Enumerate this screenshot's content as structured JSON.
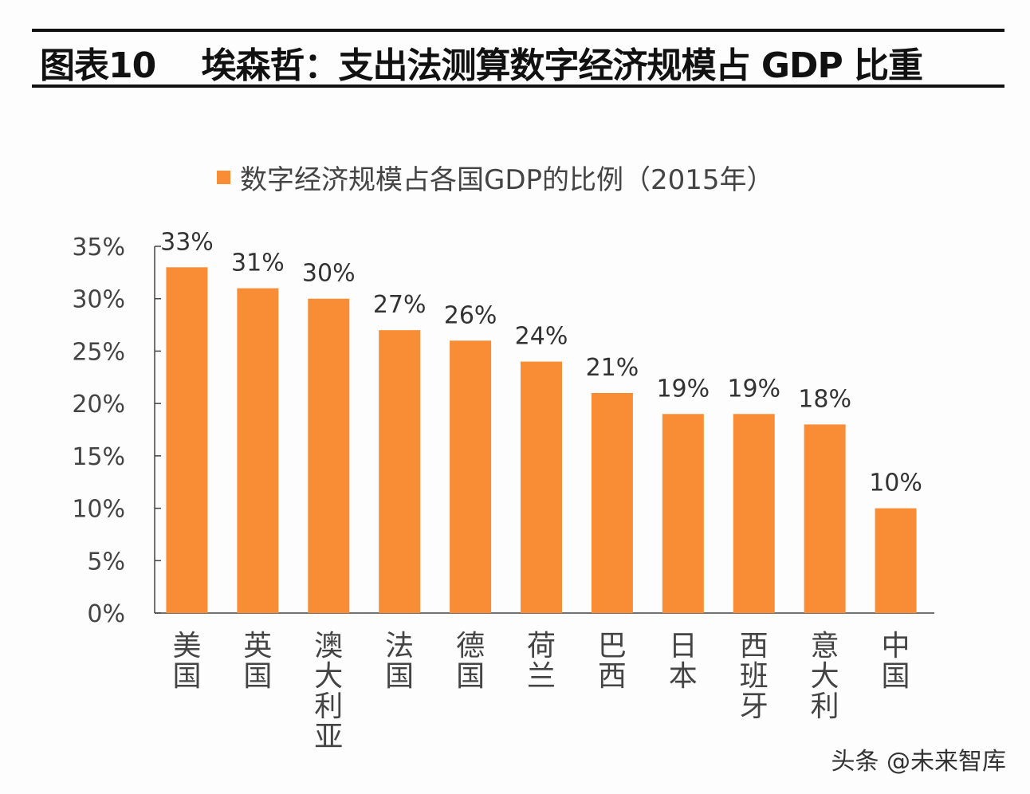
{
  "title": "图表10    埃森哲：支出法测算数字经济规模占 GDP 比重",
  "watermark": "头条 @未来智库",
  "colors": {
    "bar": "#F98D36",
    "axis": "#444444"
  },
  "chart_data": {
    "type": "bar",
    "title": "",
    "legend": {
      "label": "数字经济规模占各国GDP的比例（2015年）",
      "placement": "top"
    },
    "categories": [
      "美国",
      "英国",
      "澳大利亚",
      "法国",
      "德国",
      "荷兰",
      "巴西",
      "日本",
      "西班牙",
      "意大利",
      "中国"
    ],
    "values": [
      33,
      31,
      30,
      27,
      26,
      24,
      21,
      19,
      19,
      18,
      10
    ],
    "data_labels": [
      "33%",
      "31%",
      "30%",
      "27%",
      "26%",
      "24%",
      "21%",
      "19%",
      "19%",
      "18%",
      "10%"
    ],
    "ylim": [
      0,
      35
    ],
    "yticks": [
      0,
      5,
      10,
      15,
      20,
      25,
      30,
      35
    ],
    "ytick_labels": [
      "0%",
      "5%",
      "10%",
      "15%",
      "20%",
      "25%",
      "30%",
      "35%"
    ],
    "grid": false,
    "xlabel": "",
    "ylabel": ""
  }
}
